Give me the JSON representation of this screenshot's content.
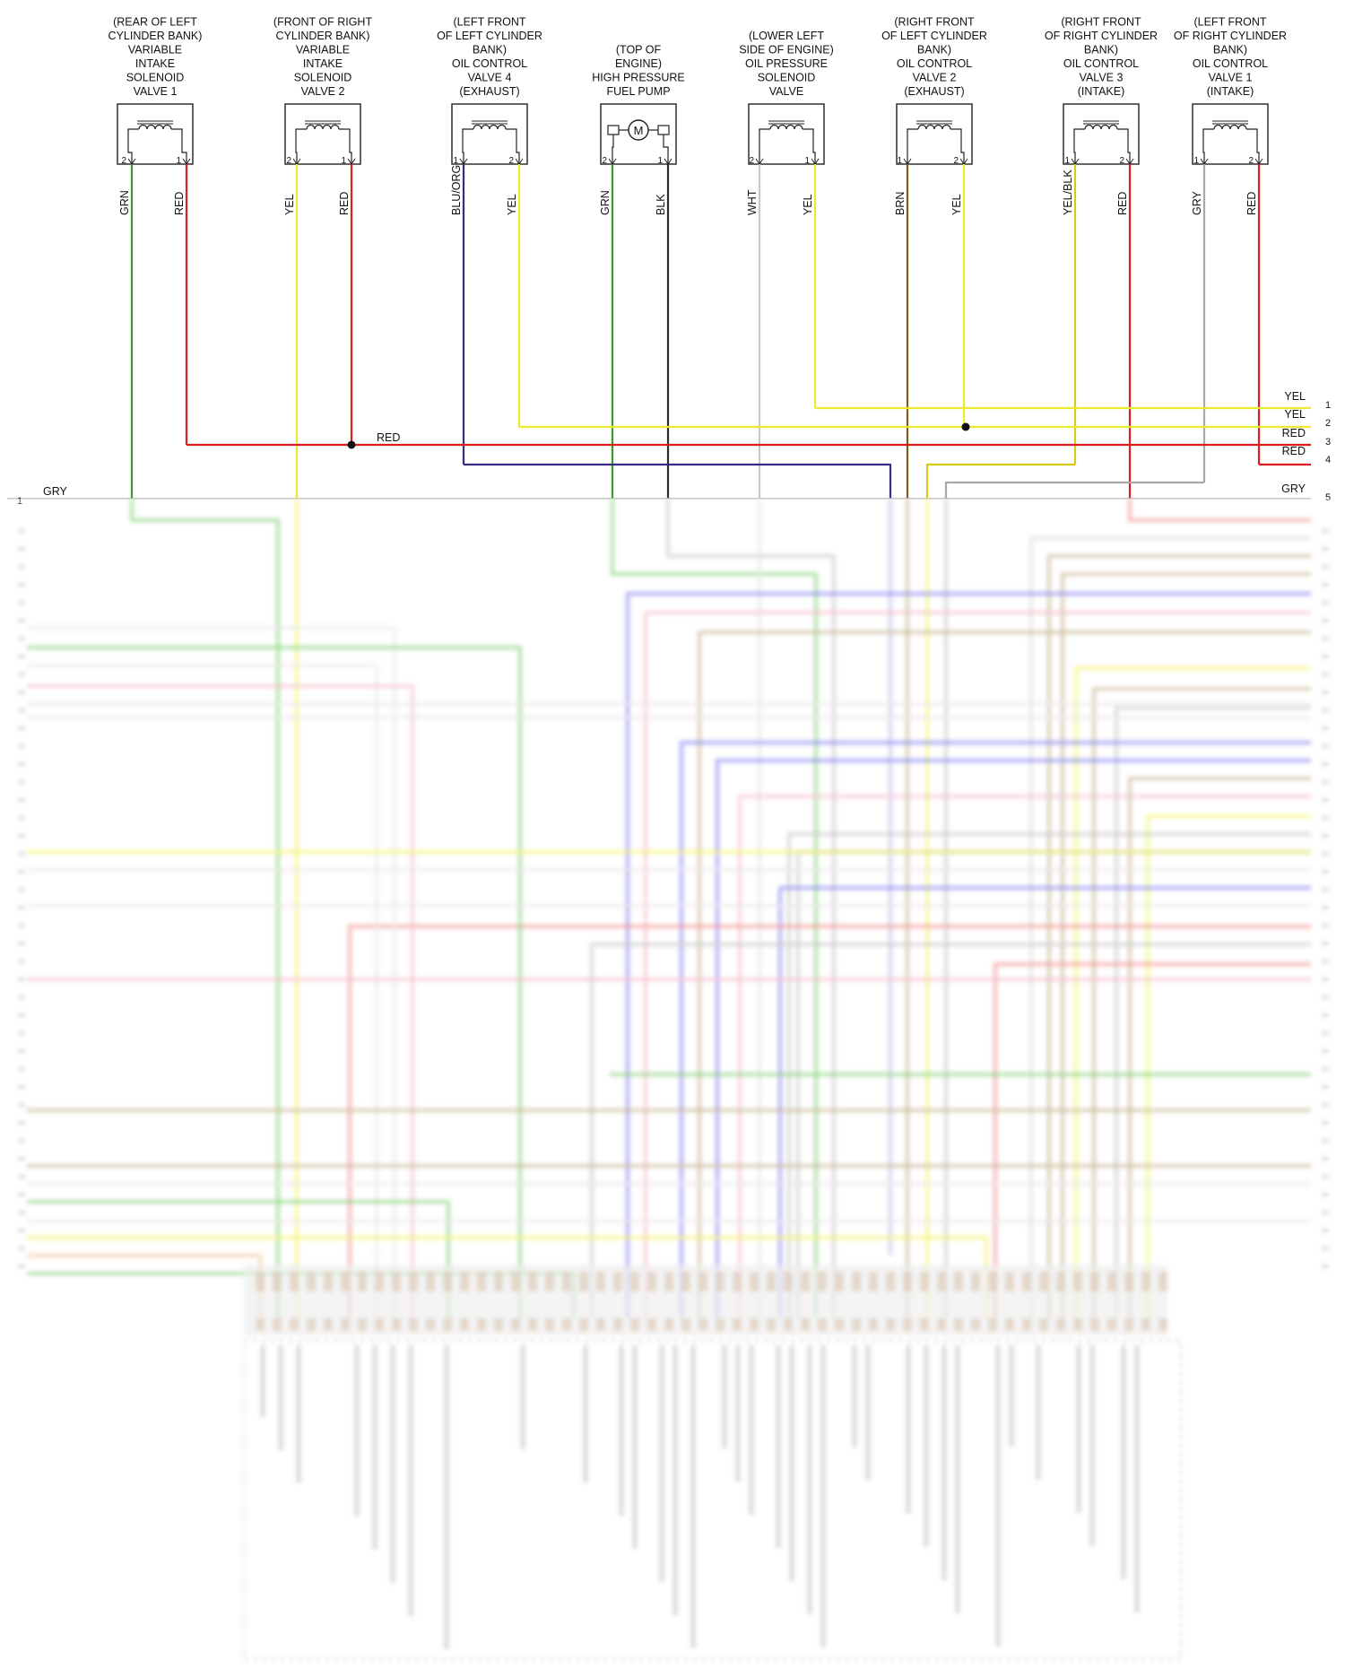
{
  "colors": {
    "GRN": "#3a9a2a",
    "RED": "#d81e1e",
    "YEL": "#ecea2c",
    "BLU_ORG": "#3a2a88",
    "BLK": "#2a2a2a",
    "WHT": "#c8c8c8",
    "BRN": "#7a5a1a",
    "YEL_BLK": "#d4cc14",
    "GRY": "#a8a8a8"
  },
  "components": [
    {
      "id": "c1",
      "title": [
        "(REAR OF LEFT",
        "CYLINDER BANK)",
        "VARIABLE",
        "INTAKE",
        "SOLENOID",
        "VALVE 1"
      ],
      "icon": "solenoid-coil-icon",
      "pins": [
        "2",
        "1"
      ],
      "wires": [
        "GRN",
        "RED"
      ]
    },
    {
      "id": "c2",
      "title": [
        "(FRONT OF RIGHT",
        "CYLINDER BANK)",
        "VARIABLE",
        "INTAKE",
        "SOLENOID",
        "VALVE 2"
      ],
      "icon": "solenoid-coil-icon",
      "pins": [
        "2",
        "1"
      ],
      "wires": [
        "YEL",
        "RED"
      ]
    },
    {
      "id": "c3",
      "title": [
        "(LEFT FRONT",
        "OF LEFT CYLINDER",
        "BANK)",
        "OIL CONTROL",
        "VALVE 4",
        "(EXHAUST)"
      ],
      "icon": "solenoid-coil-icon",
      "pins": [
        "1",
        "2"
      ],
      "wires": [
        "BLU/ORG",
        "YEL"
      ]
    },
    {
      "id": "c4",
      "title": [
        "(TOP OF",
        "ENGINE)",
        "HIGH PRESSURE",
        "FUEL PUMP"
      ],
      "icon": "motor-icon",
      "motor_letter": "M",
      "pins": [
        "2",
        "1"
      ],
      "wires": [
        "GRN",
        "BLK"
      ]
    },
    {
      "id": "c5",
      "title": [
        "(LOWER LEFT",
        "SIDE OF ENGINE)",
        "OIL PRESSURE",
        "SOLENOID",
        "VALVE"
      ],
      "icon": "solenoid-coil-icon",
      "pins": [
        "2",
        "1"
      ],
      "wires": [
        "WHT",
        "YEL"
      ]
    },
    {
      "id": "c6",
      "title": [
        "(RIGHT FRONT",
        "OF LEFT CYLINDER",
        "BANK)",
        "OIL CONTROL",
        "VALVE 2",
        "(EXHAUST)"
      ],
      "icon": "solenoid-coil-icon",
      "pins": [
        "1",
        "2"
      ],
      "wires": [
        "BRN",
        "YEL"
      ]
    },
    {
      "id": "c7",
      "title": [
        "(RIGHT FRONT",
        "OF RIGHT CYLINDER",
        "BANK)",
        "OIL CONTROL",
        "VALVE 3",
        "(INTAKE)"
      ],
      "icon": "solenoid-coil-icon",
      "pins": [
        "1",
        "2"
      ],
      "wires": [
        "YEL/BLK",
        "RED"
      ]
    },
    {
      "id": "c8",
      "title": [
        "(LEFT FRONT",
        "OF RIGHT CYLINDER",
        "BANK)",
        "OIL CONTROL",
        "VALVE 1",
        "(INTAKE)"
      ],
      "icon": "solenoid-coil-icon",
      "pins": [
        "1",
        "2"
      ],
      "wires": [
        "GRY",
        "RED"
      ]
    }
  ],
  "junction_label": "RED",
  "right_rows": [
    {
      "num": "1",
      "label": "YEL"
    },
    {
      "num": "2",
      "label": "YEL"
    },
    {
      "num": "3",
      "label": "RED"
    },
    {
      "num": "4",
      "label": "RED"
    },
    {
      "num": "5",
      "label": "GRY"
    }
  ],
  "left_row": {
    "num": "1",
    "label": "GRY"
  }
}
